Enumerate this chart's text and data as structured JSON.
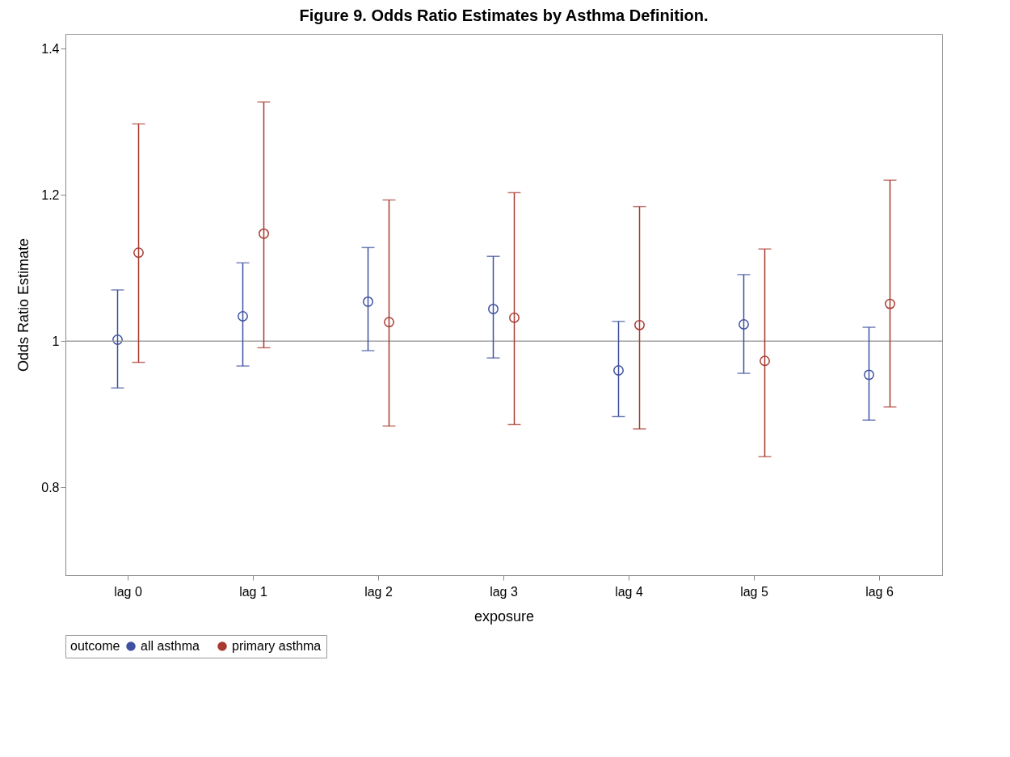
{
  "chart_data": {
    "type": "scatter",
    "title": "Figure 9. Odds Ratio Estimates by Asthma Definition.",
    "xlabel": "exposure",
    "ylabel": "Odds Ratio Estimate",
    "legend_title": "outcome",
    "categories": [
      "lag 0",
      "lag 1",
      "lag 2",
      "lag 3",
      "lag 4",
      "lag 5",
      "lag 6"
    ],
    "series": [
      {
        "name": "all asthma",
        "color": "#3f51a0",
        "values": [
          1.002,
          1.034,
          1.054,
          1.044,
          0.96,
          1.023,
          0.954
        ],
        "errors": [
          [
            0.936,
            1.07
          ],
          [
            0.966,
            1.107
          ],
          [
            0.987,
            1.128
          ],
          [
            0.977,
            1.116
          ],
          [
            0.897,
            1.027
          ],
          [
            0.956,
            1.091
          ],
          [
            0.892,
            1.019
          ]
        ]
      },
      {
        "name": "primary asthma",
        "color": "#a83a30",
        "values": [
          1.121,
          1.147,
          1.026,
          1.032,
          1.022,
          0.973,
          1.051
        ],
        "errors": [
          [
            0.971,
            1.297
          ],
          [
            0.991,
            1.327
          ],
          [
            0.884,
            1.193
          ],
          [
            0.886,
            1.203
          ],
          [
            0.88,
            1.184
          ],
          [
            0.842,
            1.126
          ],
          [
            0.91,
            1.22
          ]
        ]
      }
    ],
    "ylim": [
      0.68,
      1.42
    ],
    "yticks": [
      0.8,
      1,
      1.2,
      1.4
    ],
    "grid": false,
    "legend": "bottom",
    "marker": "circle",
    "ref_lines": [
      {
        "axis": "y",
        "value": 1,
        "color": "#a0a0a0"
      }
    ]
  }
}
